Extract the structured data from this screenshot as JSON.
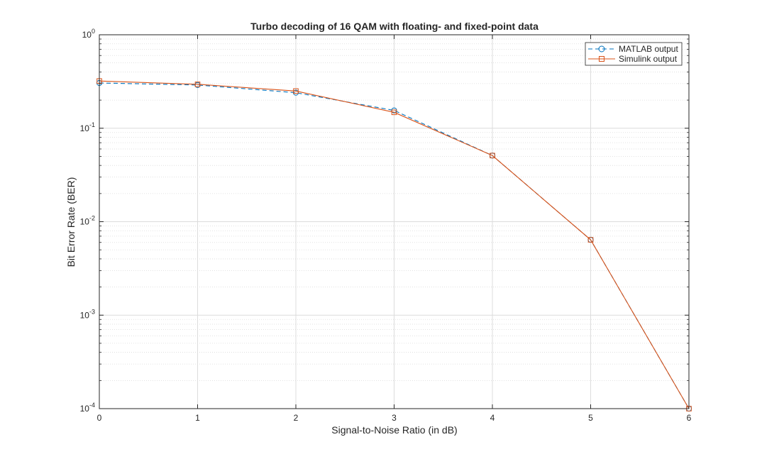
{
  "chart_data": {
    "type": "line",
    "title": "Turbo decoding of 16 QAM with floating- and fixed-point data",
    "xlabel": "Signal-to-Noise Ratio (in dB)",
    "ylabel": "Bit Error Rate (BER)",
    "xlim": [
      0,
      6
    ],
    "ylim": [
      0.0001,
      1
    ],
    "yscale": "log",
    "grid": true,
    "minor_grid": true,
    "legend_position": "top-right",
    "xticks": [
      0,
      1,
      2,
      3,
      4,
      5,
      6
    ],
    "xtick_labels": [
      "0",
      "1",
      "2",
      "3",
      "4",
      "5",
      "6"
    ],
    "yticks": [
      0.0001,
      0.001,
      0.01,
      0.1,
      1
    ],
    "ytick_labels": [
      {
        "base": "10",
        "exp": "-4"
      },
      {
        "base": "10",
        "exp": "-3"
      },
      {
        "base": "10",
        "exp": "-2"
      },
      {
        "base": "10",
        "exp": "-1"
      },
      {
        "base": "10",
        "exp": "0"
      }
    ],
    "series": [
      {
        "name": "MATLAB output",
        "color": "#0072BD",
        "line_style": "dashed",
        "marker": "circle",
        "x": [
          0,
          1,
          2,
          3,
          4,
          5,
          6
        ],
        "y": [
          0.305,
          0.29,
          0.24,
          0.155,
          0.051,
          0.0064,
          0.0001
        ]
      },
      {
        "name": "Simulink output",
        "color": "#D95319",
        "line_style": "solid",
        "marker": "square",
        "x": [
          0,
          1,
          2,
          3,
          4,
          5,
          6
        ],
        "y": [
          0.32,
          0.295,
          0.25,
          0.148,
          0.051,
          0.0064,
          0.0001
        ]
      }
    ]
  }
}
